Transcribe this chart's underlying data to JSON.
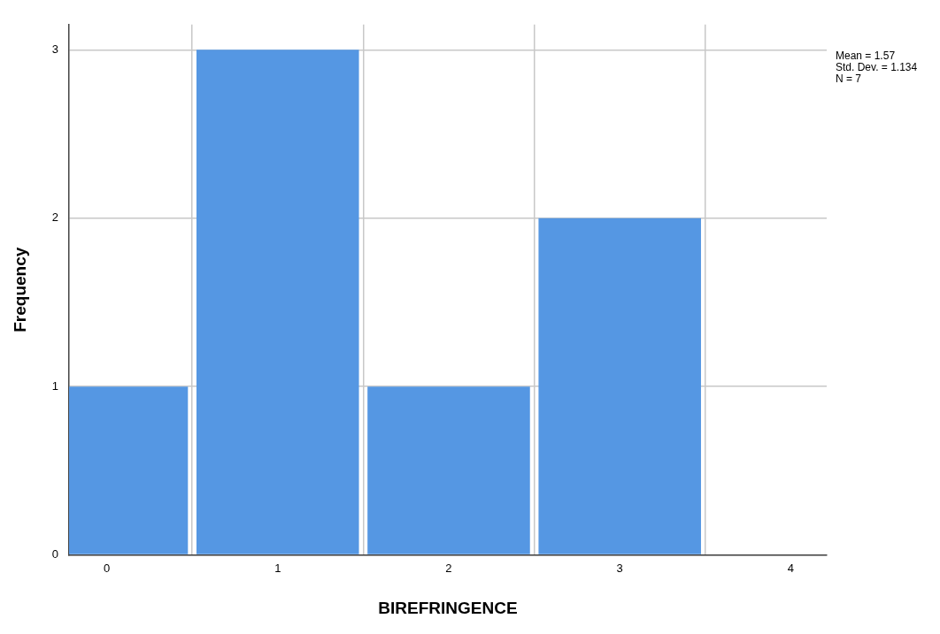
{
  "chart_data": {
    "type": "histogram",
    "xlabel": "BIREFRINGENCE",
    "ylabel": "Frequency",
    "bins": [
      -0.5,
      0.5,
      1.5,
      2.5,
      3.5
    ],
    "values": [
      1,
      3,
      1,
      2
    ],
    "color": "#5597e3",
    "xlim": [
      -0.22,
      4.21
    ],
    "xticks": [
      0,
      1,
      2,
      3,
      4
    ],
    "ylim": [
      0,
      3.15
    ],
    "yticks": [
      0,
      1,
      2,
      3
    ],
    "grid": true,
    "legend": false,
    "annotations": [
      "Mean = 1.57",
      "Std. Dev. = 1.134",
      "N = 7"
    ]
  }
}
